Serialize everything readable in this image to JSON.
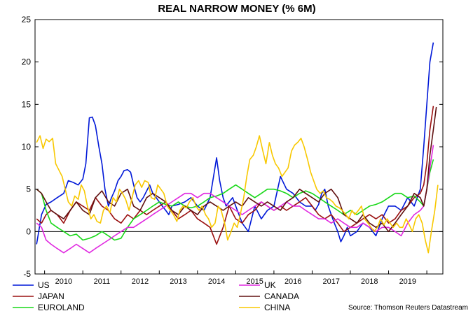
{
  "chart_data": {
    "type": "line",
    "title": "REAL NARROW MONEY (% 6M)",
    "xlabel": "",
    "ylabel": "",
    "xlim": [
      2009.75,
      2020.42
    ],
    "ylim": [
      -5,
      25
    ],
    "y_ticks": [
      -5,
      0,
      5,
      10,
      15,
      20,
      25
    ],
    "x_tick_labels": [
      "2010",
      "2011",
      "2012",
      "2013",
      "2014",
      "2015",
      "2016",
      "2017",
      "2018",
      "2019"
    ],
    "zero_line": true,
    "legend_position": "bottom",
    "source": "Source: Thomson Reuters Datastream",
    "series": [
      {
        "name": "US",
        "color": "#0018d8",
        "x": [
          2009.79,
          2009.92,
          2010.04,
          2010.17,
          2010.33,
          2010.5,
          2010.62,
          2010.75,
          2010.88,
          2011.0,
          2011.08,
          2011.17,
          2011.25,
          2011.33,
          2011.42,
          2011.5,
          2011.58,
          2011.67,
          2011.75,
          2011.83,
          2011.92,
          2012.0,
          2012.08,
          2012.17,
          2012.25,
          2012.33,
          2012.42,
          2012.5,
          2012.58,
          2012.67,
          2012.75,
          2012.83,
          2012.92,
          2013.0,
          2013.08,
          2013.17,
          2013.25,
          2013.33,
          2013.5,
          2013.67,
          2013.83,
          2014.0,
          2014.17,
          2014.33,
          2014.5,
          2014.58,
          2014.67,
          2014.75,
          2014.83,
          2014.92,
          2015.0,
          2015.17,
          2015.33,
          2015.5,
          2015.67,
          2015.83,
          2016.0,
          2016.17,
          2016.33,
          2016.5,
          2016.67,
          2016.83,
          2017.0,
          2017.08,
          2017.17,
          2017.25,
          2017.33,
          2017.42,
          2017.5,
          2017.58,
          2017.67,
          2017.75,
          2017.83,
          2017.92,
          2018.0,
          2018.17,
          2018.33,
          2018.5,
          2018.67,
          2018.83,
          2019.0,
          2019.17,
          2019.33,
          2019.5,
          2019.67,
          2019.83,
          2019.92,
          2020.0,
          2020.08,
          2020.17,
          2020.25,
          2020.33
        ],
        "y": [
          -1.5,
          2.0,
          3.2,
          3.5,
          4.0,
          4.5,
          6.0,
          5.8,
          5.5,
          6.2,
          8.0,
          13.4,
          13.5,
          12.5,
          10.0,
          8.0,
          5.0,
          3.0,
          4.0,
          4.8,
          6.0,
          6.5,
          7.2,
          7.3,
          7.0,
          5.5,
          4.0,
          3.5,
          4.0,
          4.8,
          5.5,
          4.5,
          4.0,
          3.5,
          3.0,
          2.5,
          2.0,
          3.0,
          3.2,
          3.5,
          4.0,
          3.0,
          2.5,
          4.0,
          8.7,
          6.0,
          4.0,
          3.0,
          3.5,
          4.0,
          3.0,
          1.0,
          0.0,
          3.0,
          1.5,
          2.5,
          3.0,
          6.5,
          5.0,
          4.5,
          3.5,
          3.0,
          3.0,
          2.5,
          3.2,
          4.5,
          5.0,
          3.0,
          2.0,
          1.0,
          0.0,
          -1.2,
          -0.5,
          0.5,
          -0.5,
          0.0,
          1.0,
          0.5,
          -0.5,
          1.5,
          3.0,
          3.0,
          2.5,
          4.0,
          3.0,
          5.0,
          10.0,
          15.0,
          20.0,
          22.3,
          null,
          null
        ]
      },
      {
        "name": "JAPAN",
        "color": "#9a1010",
        "x": [
          2009.79,
          2009.92,
          2010.04,
          2010.17,
          2010.33,
          2010.5,
          2010.67,
          2010.83,
          2011.0,
          2011.17,
          2011.33,
          2011.5,
          2011.67,
          2011.83,
          2012.0,
          2012.17,
          2012.33,
          2012.5,
          2012.67,
          2012.83,
          2013.0,
          2013.17,
          2013.33,
          2013.5,
          2013.67,
          2013.83,
          2014.0,
          2014.17,
          2014.33,
          2014.5,
          2014.67,
          2014.83,
          2015.0,
          2015.17,
          2015.33,
          2015.5,
          2015.67,
          2015.83,
          2016.0,
          2016.17,
          2016.33,
          2016.5,
          2016.67,
          2016.83,
          2017.0,
          2017.17,
          2017.33,
          2017.5,
          2017.67,
          2017.83,
          2018.0,
          2018.17,
          2018.33,
          2018.5,
          2018.67,
          2018.83,
          2019.0,
          2019.17,
          2019.33,
          2019.5,
          2019.67,
          2019.83,
          2019.92,
          2020.0,
          2020.08,
          2020.17,
          2020.25
        ],
        "y": [
          1.5,
          1.0,
          2.0,
          2.5,
          2.0,
          1.0,
          2.5,
          3.5,
          3.0,
          2.5,
          4.0,
          3.0,
          2.5,
          1.5,
          1.0,
          2.0,
          1.5,
          2.5,
          2.0,
          2.5,
          3.0,
          3.5,
          2.5,
          1.5,
          2.0,
          2.5,
          1.5,
          1.0,
          0.5,
          -1.5,
          0.5,
          3.0,
          1.5,
          1.0,
          2.0,
          2.5,
          3.5,
          3.0,
          2.5,
          3.0,
          2.5,
          3.0,
          3.5,
          4.0,
          3.0,
          2.0,
          1.5,
          2.0,
          1.0,
          0.0,
          0.5,
          1.0,
          1.5,
          2.0,
          1.5,
          2.0,
          1.0,
          1.5,
          2.5,
          3.0,
          4.0,
          4.5,
          5.5,
          8.0,
          12.0,
          14.8,
          null
        ]
      },
      {
        "name": "EUROLAND",
        "color": "#18d818",
        "x": [
          2009.79,
          2009.92,
          2010.04,
          2010.17,
          2010.33,
          2010.5,
          2010.67,
          2010.83,
          2011.0,
          2011.17,
          2011.33,
          2011.5,
          2011.67,
          2011.83,
          2012.0,
          2012.17,
          2012.33,
          2012.5,
          2012.67,
          2012.83,
          2013.0,
          2013.17,
          2013.33,
          2013.5,
          2013.67,
          2013.83,
          2014.0,
          2014.17,
          2014.33,
          2014.5,
          2014.67,
          2014.83,
          2015.0,
          2015.17,
          2015.33,
          2015.5,
          2015.67,
          2015.83,
          2016.0,
          2016.17,
          2016.33,
          2016.5,
          2016.67,
          2016.83,
          2017.0,
          2017.17,
          2017.33,
          2017.5,
          2017.67,
          2017.83,
          2018.0,
          2018.17,
          2018.33,
          2018.5,
          2018.67,
          2018.83,
          2019.0,
          2019.17,
          2019.33,
          2019.5,
          2019.67,
          2019.83,
          2019.92,
          2020.0,
          2020.08,
          2020.17,
          2020.25
        ],
        "y": [
          5.0,
          4.5,
          2.5,
          1.0,
          0.5,
          0.0,
          -0.5,
          -0.3,
          -1.0,
          -0.8,
          -0.5,
          0.0,
          -0.5,
          -1.0,
          -0.8,
          0.5,
          1.5,
          2.0,
          2.5,
          3.0,
          3.5,
          3.2,
          3.0,
          3.5,
          3.0,
          2.8,
          3.0,
          3.5,
          4.0,
          4.2,
          4.5,
          5.0,
          5.5,
          5.0,
          4.5,
          4.0,
          4.5,
          5.0,
          5.0,
          4.8,
          4.5,
          4.0,
          4.5,
          4.8,
          4.5,
          4.0,
          3.5,
          3.0,
          2.5,
          2.0,
          2.5,
          2.0,
          2.5,
          3.0,
          3.2,
          3.5,
          4.0,
          4.5,
          4.5,
          4.0,
          4.2,
          3.5,
          3.0,
          5.0,
          7.0,
          8.5,
          null
        ]
      },
      {
        "name": "UK",
        "color": "#e028e0",
        "x": [
          2009.79,
          2009.92,
          2010.04,
          2010.17,
          2010.33,
          2010.5,
          2010.67,
          2010.83,
          2011.0,
          2011.17,
          2011.33,
          2011.5,
          2011.67,
          2011.83,
          2012.0,
          2012.17,
          2012.33,
          2012.5,
          2012.67,
          2012.83,
          2013.0,
          2013.17,
          2013.33,
          2013.5,
          2013.67,
          2013.83,
          2014.0,
          2014.17,
          2014.33,
          2014.5,
          2014.67,
          2014.83,
          2015.0,
          2015.17,
          2015.33,
          2015.5,
          2015.67,
          2015.83,
          2016.0,
          2016.17,
          2016.33,
          2016.5,
          2016.67,
          2016.83,
          2017.0,
          2017.17,
          2017.33,
          2017.5,
          2017.67,
          2017.83,
          2018.0,
          2018.17,
          2018.33,
          2018.5,
          2018.67,
          2018.83,
          2019.0,
          2019.17,
          2019.33,
          2019.5,
          2019.67,
          2019.83,
          2019.92,
          2020.0,
          2020.08,
          2020.17,
          2020.25
        ],
        "y": [
          1.0,
          0.5,
          -1.0,
          -1.5,
          -2.0,
          -2.5,
          -2.0,
          -1.5,
          -2.0,
          -2.5,
          -2.0,
          -1.5,
          -1.0,
          -0.5,
          0.0,
          0.5,
          0.5,
          1.0,
          1.5,
          2.0,
          2.5,
          3.0,
          3.5,
          4.0,
          4.5,
          4.5,
          4.0,
          4.5,
          4.5,
          4.0,
          3.5,
          3.0,
          2.5,
          2.0,
          2.5,
          3.0,
          3.5,
          3.0,
          2.5,
          3.0,
          3.5,
          3.0,
          3.0,
          2.5,
          2.0,
          1.5,
          1.5,
          1.0,
          1.5,
          1.0,
          0.5,
          0.5,
          1.0,
          0.5,
          0.0,
          0.5,
          0.5,
          0.0,
          -0.5,
          1.0,
          2.0,
          2.5,
          3.0,
          5.0,
          7.5,
          10.2,
          null
        ]
      },
      {
        "name": "CANADA",
        "color": "#601010",
        "x": [
          2009.79,
          2009.92,
          2010.04,
          2010.17,
          2010.33,
          2010.5,
          2010.67,
          2010.83,
          2011.0,
          2011.17,
          2011.33,
          2011.5,
          2011.67,
          2011.83,
          2012.0,
          2012.17,
          2012.33,
          2012.5,
          2012.67,
          2012.83,
          2013.0,
          2013.17,
          2013.33,
          2013.5,
          2013.67,
          2013.83,
          2014.0,
          2014.17,
          2014.33,
          2014.5,
          2014.67,
          2014.83,
          2015.0,
          2015.17,
          2015.33,
          2015.5,
          2015.67,
          2015.83,
          2016.0,
          2016.17,
          2016.33,
          2016.5,
          2016.67,
          2016.83,
          2017.0,
          2017.17,
          2017.33,
          2017.5,
          2017.67,
          2017.83,
          2018.0,
          2018.17,
          2018.33,
          2018.5,
          2018.67,
          2018.83,
          2019.0,
          2019.17,
          2019.33,
          2019.5,
          2019.67,
          2019.83,
          2019.92,
          2020.0,
          2020.08,
          2020.17,
          2020.25,
          2020.33
        ],
        "y": [
          5.0,
          4.5,
          3.5,
          2.5,
          2.0,
          1.5,
          2.5,
          3.5,
          2.5,
          2.0,
          4.0,
          4.8,
          3.5,
          3.0,
          4.5,
          5.0,
          3.0,
          2.5,
          4.0,
          4.5,
          4.0,
          3.5,
          2.5,
          2.0,
          3.0,
          2.5,
          2.0,
          3.0,
          3.5,
          3.0,
          2.5,
          3.0,
          3.5,
          3.0,
          4.0,
          3.5,
          3.0,
          3.5,
          3.0,
          2.5,
          3.5,
          4.0,
          5.0,
          4.5,
          4.0,
          3.5,
          4.5,
          5.0,
          4.0,
          2.0,
          1.5,
          1.0,
          2.0,
          1.0,
          0.5,
          1.0,
          0.0,
          1.0,
          2.0,
          3.0,
          4.5,
          4.0,
          3.0,
          5.0,
          9.0,
          12.0,
          14.7,
          null
        ]
      },
      {
        "name": "CHINA",
        "color": "#f8c800",
        "x": [
          2009.79,
          2009.88,
          2009.96,
          2010.04,
          2010.12,
          2010.21,
          2010.29,
          2010.37,
          2010.46,
          2010.54,
          2010.62,
          2010.71,
          2010.79,
          2010.88,
          2010.96,
          2011.04,
          2011.12,
          2011.21,
          2011.29,
          2011.37,
          2011.46,
          2011.54,
          2011.62,
          2011.71,
          2011.79,
          2011.88,
          2011.96,
          2012.04,
          2012.12,
          2012.21,
          2012.29,
          2012.37,
          2012.46,
          2012.54,
          2012.62,
          2012.71,
          2012.79,
          2012.88,
          2012.96,
          2013.04,
          2013.12,
          2013.21,
          2013.29,
          2013.37,
          2013.46,
          2013.54,
          2013.62,
          2013.71,
          2013.79,
          2013.88,
          2013.96,
          2014.04,
          2014.12,
          2014.21,
          2014.29,
          2014.37,
          2014.46,
          2014.54,
          2014.62,
          2014.71,
          2014.79,
          2014.88,
          2014.96,
          2015.04,
          2015.12,
          2015.21,
          2015.29,
          2015.37,
          2015.46,
          2015.54,
          2015.62,
          2015.71,
          2015.79,
          2015.88,
          2015.96,
          2016.04,
          2016.12,
          2016.21,
          2016.29,
          2016.37,
          2016.46,
          2016.54,
          2016.62,
          2016.71,
          2016.79,
          2016.88,
          2016.96,
          2017.04,
          2017.12,
          2017.21,
          2017.29,
          2017.37,
          2017.46,
          2017.54,
          2017.62,
          2017.71,
          2017.79,
          2017.88,
          2017.96,
          2018.04,
          2018.12,
          2018.21,
          2018.29,
          2018.37,
          2018.46,
          2018.54,
          2018.62,
          2018.71,
          2018.79,
          2018.88,
          2018.96,
          2019.04,
          2019.12,
          2019.21,
          2019.29,
          2019.37,
          2019.46,
          2019.54,
          2019.62,
          2019.71,
          2019.79,
          2019.88,
          2019.96,
          2020.04,
          2020.12,
          2020.21,
          2020.29
        ],
        "y": [
          10.5,
          11.3,
          9.8,
          10.9,
          10.6,
          11.0,
          8.0,
          7.3,
          6.5,
          5.0,
          3.5,
          3.0,
          4.2,
          3.8,
          5.5,
          4.8,
          3.0,
          1.5,
          2.0,
          1.2,
          1.0,
          2.5,
          3.0,
          2.2,
          4.0,
          3.5,
          5.0,
          4.5,
          3.8,
          2.5,
          4.0,
          5.5,
          6.0,
          5.2,
          6.0,
          5.8,
          4.0,
          3.8,
          5.5,
          5.0,
          4.5,
          3.0,
          2.5,
          2.0,
          1.2,
          2.5,
          3.0,
          2.8,
          3.5,
          4.0,
          3.0,
          2.5,
          3.0,
          2.0,
          1.5,
          0.5,
          1.0,
          3.0,
          2.5,
          1.0,
          -1.0,
          0.0,
          1.0,
          0.5,
          2.0,
          4.0,
          6.5,
          8.5,
          9.0,
          10.0,
          11.3,
          9.5,
          8.0,
          10.5,
          9.0,
          8.0,
          7.5,
          6.5,
          7.0,
          7.5,
          9.5,
          10.2,
          10.5,
          11.0,
          10.0,
          8.5,
          7.0,
          6.0,
          5.0,
          4.5,
          4.8,
          4.0,
          3.8,
          3.5,
          3.0,
          2.8,
          2.5,
          2.0,
          1.5,
          2.5,
          2.0,
          2.5,
          3.0,
          1.5,
          1.0,
          0.5,
          0.0,
          0.5,
          1.5,
          0.8,
          1.5,
          1.0,
          0.5,
          1.0,
          0.5,
          0.5,
          1.5,
          0.8,
          0.0,
          1.5,
          2.0,
          1.0,
          -1.0,
          -2.5,
          0.0,
          2.5,
          5.5
        ]
      }
    ]
  }
}
